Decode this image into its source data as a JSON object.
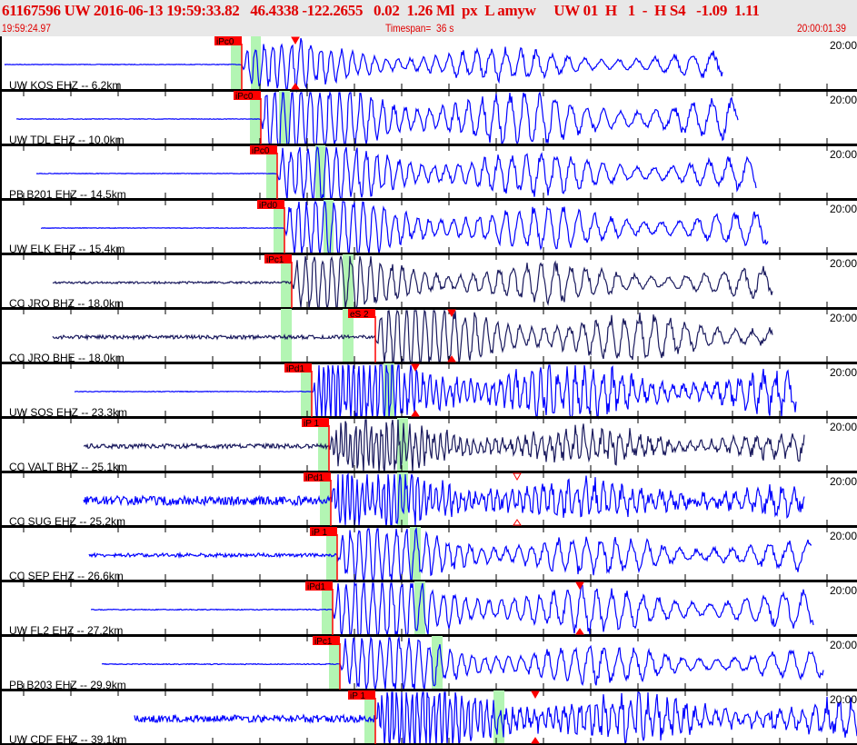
{
  "header": {
    "title": "61167596 UW 2016-06-13 19:59:33.82   46.4338 -122.2655   0.02  1.26 Ml  px  L amyw     UW 01  H   1  -  H S4   -1.09  1.11",
    "start_time": "19:59:24.97",
    "timespan": "Timespan=  36 s",
    "end_time": "20:00:01.39"
  },
  "colors": {
    "header_text": "#e00000",
    "short_period": "#0000ff",
    "broadband": "#1a1a5e",
    "pick": "#ff0000",
    "window": "#b3f5b3"
  },
  "chart_data": {
    "type": "line",
    "xlabel": "",
    "ylabel": "",
    "time_range": [
      "19:59:24.97",
      "20:00:01.39"
    ],
    "traces": [
      {
        "label": "UW KOS EHZ -- 6.2km",
        "pick": "iPc0",
        "time_tag": "20:00",
        "s_marker": "filled"
      },
      {
        "label": "UW TDL EHZ -- 10.0km",
        "pick": "iPc0",
        "time_tag": "20:00"
      },
      {
        "label": "PB B201 EHZ -- 14.5km",
        "pick": "iPc0",
        "time_tag": "20:00"
      },
      {
        "label": "UW ELK EHZ -- 15.4km",
        "pick": "iPd0",
        "time_tag": "20:00"
      },
      {
        "label": "CC JRO BHZ -- 18.0km",
        "pick": "iPc1",
        "time_tag": "20:00"
      },
      {
        "label": "CC JRO BHE -- 18.0km",
        "pick": "eS 2",
        "time_tag": "20:00",
        "s_marker": "filled"
      },
      {
        "label": "UW SOS EHZ -- 23.3km",
        "pick": "iPd1",
        "time_tag": "20:00",
        "s_marker": "filled"
      },
      {
        "label": "CC VALT BHZ -- 25.1km",
        "pick": "iP 1",
        "time_tag": "20:00"
      },
      {
        "label": "CC SUG EHZ -- 25.2km",
        "pick": "iPd1",
        "time_tag": "20:00",
        "s_marker": "hollow"
      },
      {
        "label": "CC SEP EHZ -- 26.6km",
        "pick": "iP 1",
        "time_tag": "20:00"
      },
      {
        "label": "UW FL2 EHZ -- 27.2km",
        "pick": "iPd1",
        "time_tag": "20:00",
        "s_marker": "filled"
      },
      {
        "label": "PB B203 EHZ -- 29.9km",
        "pick": "iPc1",
        "time_tag": "20:00"
      },
      {
        "label": "UW CDF EHZ -- 39.1km",
        "pick": "iP 1",
        "time_tag": "20:00",
        "s_marker": "filled"
      }
    ]
  }
}
